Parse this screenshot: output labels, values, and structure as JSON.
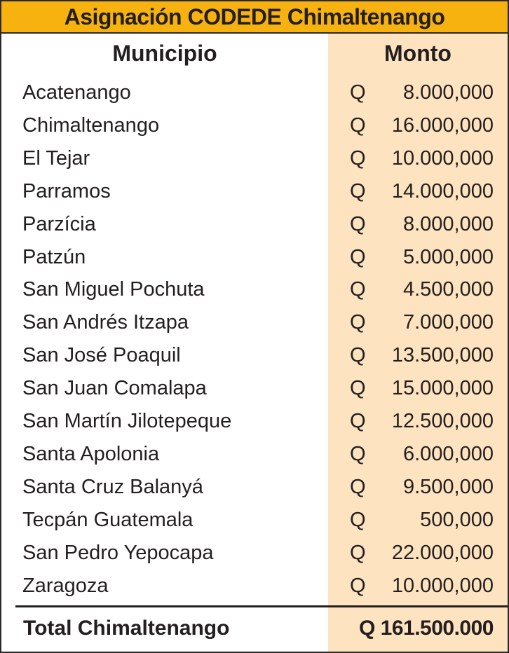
{
  "title": "Asignación CODEDE Chimaltenango",
  "headers": {
    "municipio": "Municipio",
    "monto": "Monto"
  },
  "currency": "Q",
  "rows": [
    {
      "municipio": "Acatenango",
      "monto": "8.000,000"
    },
    {
      "municipio": "Chimaltenango",
      "monto": "16.000,000"
    },
    {
      "municipio": "El Tejar",
      "monto": "10.000,000"
    },
    {
      "municipio": "Parramos",
      "monto": "14.000,000"
    },
    {
      "municipio": "Parzícia",
      "monto": "8.000,000"
    },
    {
      "municipio": "Patzún",
      "monto": "5.000,000"
    },
    {
      "municipio": "San Miguel Pochuta",
      "monto": "4.500,000"
    },
    {
      "municipio": "San Andrés Itzapa",
      "monto": "7.000,000"
    },
    {
      "municipio": "San José Poaquil",
      "monto": "13.500,000"
    },
    {
      "municipio": "San Juan Comalapa",
      "monto": "15.000,000"
    },
    {
      "municipio": "San Martín Jilotepeque",
      "monto": "12.500,000"
    },
    {
      "municipio": "Santa Apolonia",
      "monto": "6.000,000"
    },
    {
      "municipio": "Santa Cruz Balanyá",
      "monto": "9.500,000"
    },
    {
      "municipio": "Tecpán Guatemala",
      "monto": "500,000"
    },
    {
      "municipio": "San Pedro Yepocapa",
      "monto": "22.000,000"
    },
    {
      "municipio": "Zaragoza",
      "monto": "10.000,000"
    }
  ],
  "total": {
    "label": "Total Chimaltenango",
    "monto": "Q 161.500.000"
  },
  "colors": {
    "title_bg": "#f7b20f",
    "monto_bg": "#fde3bf",
    "border": "#2a2a2a"
  }
}
